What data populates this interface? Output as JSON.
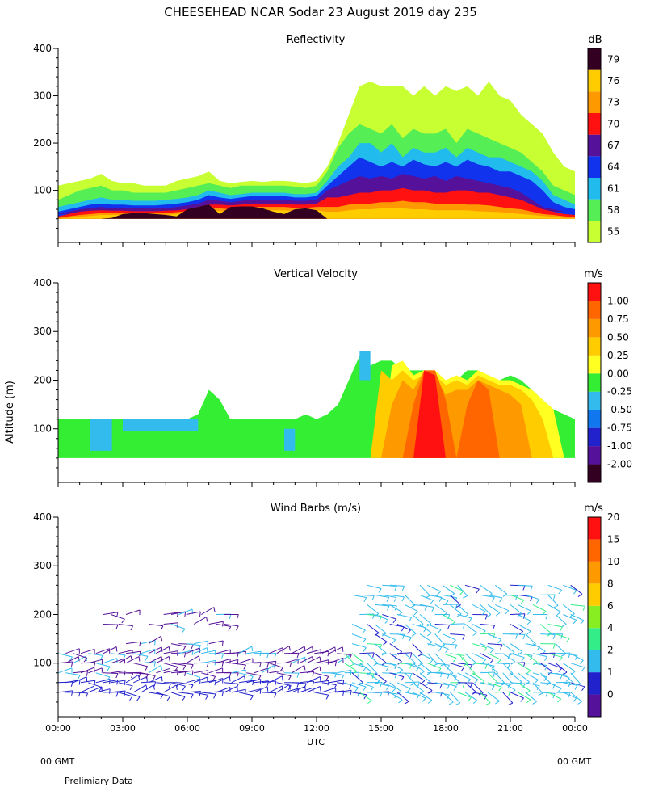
{
  "title": "CHEESEHEAD   NCAR Sodar   23 August 2019   day 235",
  "shared_ylabel": "Altitude (m)",
  "xlabel": "UTC",
  "footer": {
    "left_gmt": "00 GMT",
    "right_gmt": "00 GMT",
    "note": "Prelimiary Data"
  },
  "colors": {
    "refl": [
      "#c8ff33",
      "#55ee55",
      "#22bbee",
      "#1133ee",
      "#551199",
      "#ff1111",
      "#ff9900",
      "#ffcc00",
      "#330022"
    ],
    "vv": [
      "#330022",
      "#551199",
      "#2222cc",
      "#1177ee",
      "#33bbee",
      "#33ee33",
      "#ffff22",
      "#ffcc00",
      "#ff9900",
      "#ff6600",
      "#ff1111"
    ],
    "wind": [
      "#551199",
      "#2222cc",
      "#33bbee",
      "#33ee88",
      "#88ee22",
      "#ffcc00",
      "#ff9900",
      "#ff6600",
      "#ff1111"
    ]
  },
  "chart_data": [
    {
      "type": "heatmap",
      "title": "Reflectivity",
      "unit": "dB",
      "ylim": [
        0,
        400
      ],
      "yticks": [
        100,
        200,
        300,
        400
      ],
      "xlim": [
        0,
        24
      ],
      "xticks": [
        "00:00",
        "03:00",
        "06:00",
        "09:00",
        "12:00",
        "15:00",
        "18:00",
        "21:00",
        "00:00"
      ],
      "colorbar": [
        "55",
        "58",
        "61",
        "64",
        "67",
        "70",
        "73",
        "76",
        "79"
      ],
      "x": [
        0,
        0.5,
        1,
        1.5,
        2,
        2.5,
        3,
        3.5,
        4,
        4.5,
        5,
        5.5,
        6,
        6.5,
        7,
        7.5,
        8,
        8.5,
        9,
        9.5,
        10,
        10.5,
        11,
        11.5,
        12,
        12.5,
        13,
        13.5,
        14,
        14.5,
        15,
        15.5,
        16,
        16.5,
        17,
        17.5,
        18,
        18.5,
        19,
        19.5,
        20,
        20.5,
        21,
        21.5,
        22,
        22.5,
        23,
        23.5,
        24
      ],
      "level_tops_m": [
        [
          110,
          115,
          120,
          125,
          135,
          120,
          115,
          115,
          110,
          110,
          110,
          120,
          125,
          130,
          140,
          120,
          115,
          118,
          120,
          118,
          120,
          120,
          118,
          115,
          120,
          150,
          200,
          260,
          320,
          330,
          320,
          320,
          320,
          300,
          320,
          300,
          320,
          310,
          320,
          300,
          330,
          300,
          290,
          260,
          240,
          220,
          180,
          150,
          140
        ],
        [
          80,
          90,
          100,
          105,
          110,
          100,
          100,
          95,
          95,
          95,
          95,
          100,
          105,
          110,
          115,
          110,
          105,
          110,
          110,
          110,
          110,
          110,
          108,
          105,
          110,
          140,
          190,
          220,
          240,
          230,
          220,
          240,
          210,
          230,
          220,
          220,
          230,
          200,
          230,
          220,
          210,
          200,
          190,
          180,
          160,
          140,
          110,
          100,
          90
        ],
        [
          65,
          70,
          75,
          80,
          85,
          80,
          80,
          78,
          78,
          78,
          80,
          82,
          85,
          90,
          100,
          95,
          90,
          92,
          95,
          95,
          95,
          95,
          92,
          92,
          95,
          120,
          150,
          170,
          200,
          200,
          180,
          200,
          170,
          190,
          180,
          180,
          190,
          170,
          190,
          180,
          170,
          170,
          160,
          150,
          140,
          120,
          90,
          80,
          70
        ],
        [
          55,
          60,
          65,
          70,
          72,
          70,
          70,
          68,
          68,
          68,
          70,
          72,
          75,
          80,
          90,
          85,
          82,
          85,
          88,
          88,
          88,
          88,
          85,
          85,
          88,
          110,
          130,
          150,
          170,
          160,
          150,
          160,
          150,
          165,
          155,
          150,
          160,
          150,
          165,
          155,
          150,
          140,
          140,
          130,
          120,
          100,
          75,
          65,
          60
        ],
        [
          50,
          55,
          60,
          62,
          65,
          62,
          62,
          62,
          62,
          62,
          62,
          65,
          68,
          72,
          80,
          78,
          75,
          78,
          80,
          80,
          80,
          80,
          78,
          78,
          80,
          100,
          110,
          120,
          130,
          125,
          130,
          125,
          135,
          130,
          125,
          130,
          120,
          130,
          125,
          120,
          115,
          110,
          105,
          95,
          80,
          65,
          60,
          55
        ],
        [
          45,
          50,
          55,
          57,
          58,
          57,
          57,
          56,
          56,
          56,
          57,
          58,
          60,
          65,
          70,
          70,
          68,
          70,
          72,
          72,
          72,
          72,
          70,
          70,
          72,
          85,
          85,
          90,
          95,
          95,
          100,
          100,
          105,
          100,
          100,
          95,
          95,
          100,
          100,
          95,
          95,
          90,
          85,
          80,
          70,
          60,
          55,
          50,
          48
        ],
        [
          42,
          45,
          48,
          50,
          52,
          52,
          52,
          52,
          52,
          52,
          52,
          54,
          56,
          60,
          65,
          62,
          60,
          62,
          65,
          65,
          65,
          65,
          63,
          63,
          65,
          65,
          65,
          70,
          72,
          72,
          75,
          75,
          78,
          75,
          75,
          72,
          72,
          72,
          70,
          70,
          68,
          65,
          62,
          60,
          55,
          50,
          48,
          45,
          44
        ],
        [
          40,
          42,
          44,
          46,
          48,
          48,
          48,
          48,
          48,
          48,
          48,
          50,
          52,
          55,
          58,
          56,
          55,
          56,
          58,
          58,
          58,
          58,
          56,
          56,
          58,
          55,
          55,
          58,
          60,
          60,
          62,
          62,
          62,
          60,
          60,
          58,
          58,
          58,
          58,
          56,
          55,
          54,
          52,
          50,
          48,
          46,
          44,
          42,
          41
        ],
        [
          0,
          0,
          0,
          0,
          0,
          42,
          50,
          52,
          52,
          50,
          48,
          45,
          60,
          65,
          70,
          50,
          65,
          66,
          66,
          62,
          55,
          50,
          60,
          62,
          58,
          0,
          0,
          0,
          0,
          0,
          0,
          0,
          0,
          0,
          0,
          0,
          0,
          0,
          0,
          0,
          0,
          0,
          0,
          0,
          0,
          0,
          0,
          0,
          0
        ]
      ],
      "note": "Each level_tops_m row is the top altitude of the region at or above that dB threshold, from 55 dB (row 0) to 79 dB (row 8); base at 40 m."
    },
    {
      "type": "heatmap",
      "title": "Vertical Velocity",
      "unit": "m/s",
      "ylim": [
        0,
        400
      ],
      "yticks": [
        100,
        200,
        300,
        400
      ],
      "xlim": [
        0,
        24
      ],
      "colorbar": [
        "-2.00",
        "-1.00",
        "-0.75",
        "-0.50",
        "-0.25",
        "0.00",
        "0.25",
        "0.50",
        "0.75",
        "1.00"
      ],
      "data_top_m": [
        120,
        120,
        120,
        120,
        120,
        120,
        120,
        120,
        120,
        120,
        120,
        120,
        120,
        130,
        180,
        160,
        120,
        120,
        120,
        120,
        120,
        120,
        120,
        130,
        120,
        130,
        150,
        200,
        250,
        230,
        240,
        240,
        220,
        220,
        220,
        200,
        200,
        200,
        220,
        220,
        200,
        200,
        210,
        200,
        180,
        160,
        140,
        130,
        120
      ],
      "x": [
        0,
        0.5,
        1,
        1.5,
        2,
        2.5,
        3,
        3.5,
        4,
        4.5,
        5,
        5.5,
        6,
        6.5,
        7,
        7.5,
        8,
        8.5,
        9,
        9.5,
        10,
        10.5,
        11,
        11.5,
        12,
        12.5,
        13,
        13.5,
        14,
        14.5,
        15,
        15.5,
        16,
        16.5,
        17,
        17.5,
        18,
        18.5,
        19,
        19.5,
        20,
        20.5,
        21,
        21.5,
        22,
        22.5,
        23,
        23.5,
        24
      ],
      "level_tops_m": [
        [
          0,
          0,
          0,
          0,
          0,
          0,
          0,
          0,
          0,
          0,
          0,
          0,
          0,
          0,
          0,
          0,
          0,
          0,
          0,
          0,
          0,
          0,
          0,
          0,
          0,
          0,
          0,
          0,
          0,
          0,
          0,
          0,
          0,
          0,
          0,
          0,
          0,
          0,
          0,
          0,
          0,
          0,
          0,
          0,
          0,
          0,
          0,
          0,
          0
        ],
        [
          0,
          0,
          0,
          0,
          0,
          0,
          0,
          0,
          0,
          0,
          0,
          0,
          0,
          0,
          0,
          0,
          0,
          0,
          0,
          0,
          0,
          0,
          0,
          0,
          0,
          0,
          0,
          0,
          0,
          0,
          0,
          0,
          0,
          0,
          0,
          0,
          0,
          0,
          0,
          0,
          0,
          0,
          0,
          0,
          0,
          0,
          0,
          0,
          0
        ],
        [
          0,
          0,
          0,
          0,
          0,
          0,
          0,
          0,
          0,
          0,
          0,
          0,
          0,
          0,
          0,
          0,
          0,
          0,
          0,
          0,
          0,
          0,
          0,
          0,
          0,
          0,
          0,
          0,
          0,
          0,
          0,
          0,
          0,
          0,
          0,
          0,
          0,
          0,
          0,
          0,
          0,
          0,
          0,
          0,
          0,
          0,
          0,
          0,
          0
        ],
        [
          0,
          0,
          0,
          0,
          0,
          0,
          0,
          0,
          0,
          0,
          0,
          0,
          0,
          0,
          0,
          0,
          0,
          0,
          0,
          0,
          0,
          0,
          0,
          0,
          0,
          0,
          0,
          0,
          0,
          0,
          0,
          0,
          0,
          0,
          0,
          0,
          0,
          0,
          0,
          0,
          0,
          0,
          0,
          0,
          0,
          0,
          0,
          0,
          0
        ],
        [
          0,
          0,
          0,
          0,
          0,
          0,
          0,
          0,
          0,
          0,
          0,
          0,
          0,
          0,
          0,
          0,
          0,
          0,
          0,
          0,
          0,
          0,
          0,
          0,
          0,
          0,
          0,
          0,
          0,
          0,
          0,
          0,
          0,
          0,
          0,
          0,
          0,
          0,
          0,
          0,
          0,
          0,
          0,
          0,
          0,
          0,
          0,
          0,
          0
        ],
        [
          0,
          0,
          0,
          0,
          0,
          0,
          0,
          0,
          0,
          0,
          0,
          0,
          0,
          0,
          0,
          0,
          0,
          0,
          0,
          0,
          0,
          0,
          0,
          0,
          0,
          0,
          0,
          0,
          0,
          0,
          0,
          0,
          0,
          0,
          0,
          0,
          0,
          0,
          0,
          0,
          0,
          0,
          0,
          0,
          0,
          0,
          0,
          0,
          0
        ],
        [
          0,
          0,
          0,
          0,
          0,
          0,
          0,
          0,
          0,
          0,
          0,
          0,
          0,
          0,
          0,
          0,
          0,
          0,
          0,
          0,
          0,
          0,
          0,
          0,
          0,
          0,
          0,
          0,
          0,
          0,
          0,
          230,
          240,
          210,
          220,
          220,
          200,
          210,
          200,
          220,
          210,
          200,
          200,
          190,
          180,
          160,
          140,
          0,
          0
        ],
        [
          0,
          0,
          0,
          0,
          0,
          0,
          0,
          0,
          0,
          0,
          0,
          0,
          0,
          0,
          0,
          0,
          0,
          0,
          0,
          0,
          0,
          0,
          0,
          0,
          0,
          0,
          0,
          0,
          0,
          0,
          220,
          200,
          220,
          200,
          210,
          210,
          190,
          200,
          190,
          210,
          200,
          190,
          190,
          180,
          160,
          120,
          0,
          0,
          0
        ],
        [
          0,
          0,
          0,
          0,
          0,
          0,
          0,
          0,
          0,
          0,
          0,
          0,
          0,
          0,
          0,
          0,
          0,
          0,
          0,
          0,
          0,
          0,
          0,
          0,
          0,
          0,
          0,
          0,
          0,
          0,
          0,
          150,
          200,
          180,
          220,
          210,
          170,
          180,
          180,
          200,
          190,
          180,
          170,
          150,
          0,
          0,
          0,
          0,
          0
        ],
        [
          0,
          0,
          0,
          0,
          0,
          0,
          0,
          0,
          0,
          0,
          0,
          0,
          0,
          0,
          0,
          0,
          0,
          0,
          0,
          0,
          0,
          0,
          0,
          0,
          0,
          0,
          0,
          0,
          0,
          0,
          0,
          0,
          0,
          150,
          220,
          220,
          160,
          0,
          150,
          200,
          180,
          0,
          0,
          0,
          0,
          0,
          0,
          0,
          0,
          0
        ],
        [
          0,
          0,
          0,
          0,
          0,
          0,
          0,
          0,
          0,
          0,
          0,
          0,
          0,
          0,
          0,
          0,
          0,
          0,
          0,
          0,
          0,
          0,
          0,
          0,
          0,
          0,
          0,
          0,
          0,
          0,
          0,
          0,
          0,
          0,
          220,
          210,
          0,
          0,
          0,
          0,
          0,
          0,
          0,
          0,
          0,
          0,
          0,
          0,
          0
        ]
      ],
      "note": "Base field (below data_top_m, from 40 m) is green 0.00 level; rows give tops of warmer-colour levels 0.25 and up at each x. Light blue (-0.25) patches occur near 01:30-02:30 (55-120 m), 03:00-06:30 (95-120 m), 10:30-11:00 (55-100 m) and near 14:00-14:30 (200-260 m)."
    },
    {
      "type": "scatter",
      "title": "Wind Barbs (m/s)",
      "unit": "m/s",
      "ylim": [
        0,
        400
      ],
      "yticks": [
        100,
        200,
        300,
        400
      ],
      "xlim": [
        0,
        24
      ],
      "colorbar": [
        "0",
        "1",
        "2",
        "4",
        "6",
        "8",
        "10",
        "15",
        "20"
      ],
      "levels_m": [
        40,
        60,
        80,
        100,
        120
      ],
      "upper_levels_m": [
        140,
        160,
        180,
        200,
        220,
        240,
        260
      ],
      "note": "Wind barbs plotted every ~20 min at sodar range gates; colour indicates speed. Mostly purple/blue (0-2 m/s) before 13:00 below 120 m, light blue/cyan (2-4 m/s) between 15:00 and 24:00 up to ~240 m."
    }
  ]
}
